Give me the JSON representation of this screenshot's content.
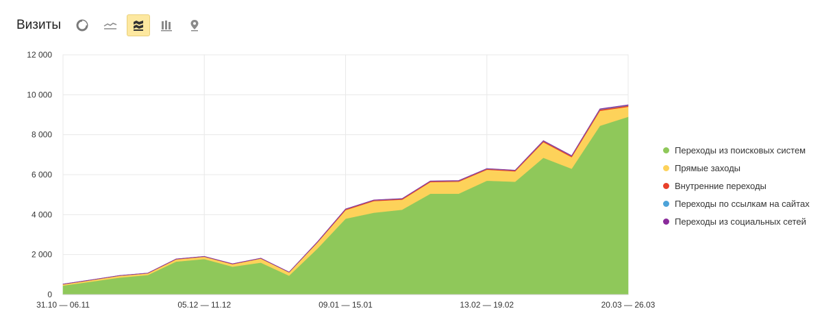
{
  "header": {
    "title": "Визиты",
    "tools": [
      {
        "icon": "pie-chart-icon",
        "active": false
      },
      {
        "icon": "line-chart-icon",
        "active": false
      },
      {
        "icon": "stacked-area-icon",
        "active": true
      },
      {
        "icon": "bar-chart-icon",
        "active": false
      },
      {
        "icon": "map-pin-icon",
        "active": false
      }
    ]
  },
  "chart_data": {
    "type": "area",
    "stacked": true,
    "title": "Визиты",
    "xlabel": "",
    "ylabel": "",
    "ylim": [
      0,
      12000
    ],
    "yticks": [
      0,
      2000,
      4000,
      6000,
      8000,
      10000,
      12000
    ],
    "ytick_labels": [
      "0",
      "2 000",
      "4 000",
      "6 000",
      "8 000",
      "10 000",
      "12 000"
    ],
    "xtick_labels": [
      {
        "index": 0,
        "label": "31.10 — 06.11"
      },
      {
        "index": 5,
        "label": "05.12 — 11.12"
      },
      {
        "index": 10,
        "label": "09.01 — 15.01"
      },
      {
        "index": 15,
        "label": "13.02 — 19.02"
      },
      {
        "index": 20,
        "label": "20.03 — 26.03"
      }
    ],
    "grid": true,
    "legend_position": "right",
    "series": [
      {
        "name": "Переходы из поисковых систем",
        "color": "#8fc85a",
        "values": [
          450,
          650,
          850,
          980,
          1650,
          1780,
          1400,
          1600,
          950,
          2300,
          3800,
          4100,
          4250,
          5050,
          5050,
          5700,
          5650,
          6850,
          6300,
          8450,
          8900
        ]
      },
      {
        "name": "Прямые заходы",
        "color": "#fdd25a",
        "values": [
          60,
          70,
          90,
          80,
          110,
          110,
          120,
          200,
          160,
          300,
          430,
          580,
          500,
          580,
          600,
          550,
          520,
          780,
          580,
          750,
          500
        ]
      },
      {
        "name": "Внутренние переходы",
        "color": "#e8402a",
        "values": [
          10,
          10,
          10,
          10,
          15,
          15,
          15,
          15,
          10,
          20,
          40,
          40,
          40,
          40,
          40,
          40,
          40,
          50,
          50,
          60,
          60
        ]
      },
      {
        "name": "Переходы по ссылкам на сайтах",
        "color": "#4da3d9",
        "values": [
          5,
          5,
          5,
          5,
          5,
          5,
          5,
          5,
          5,
          10,
          10,
          10,
          10,
          10,
          10,
          10,
          10,
          15,
          15,
          20,
          20
        ]
      },
      {
        "name": "Переходы из социальных сетей",
        "color": "#8a2b9b",
        "values": [
          5,
          5,
          5,
          5,
          5,
          5,
          5,
          5,
          5,
          10,
          10,
          10,
          10,
          10,
          10,
          10,
          10,
          15,
          15,
          20,
          20
        ]
      }
    ]
  }
}
